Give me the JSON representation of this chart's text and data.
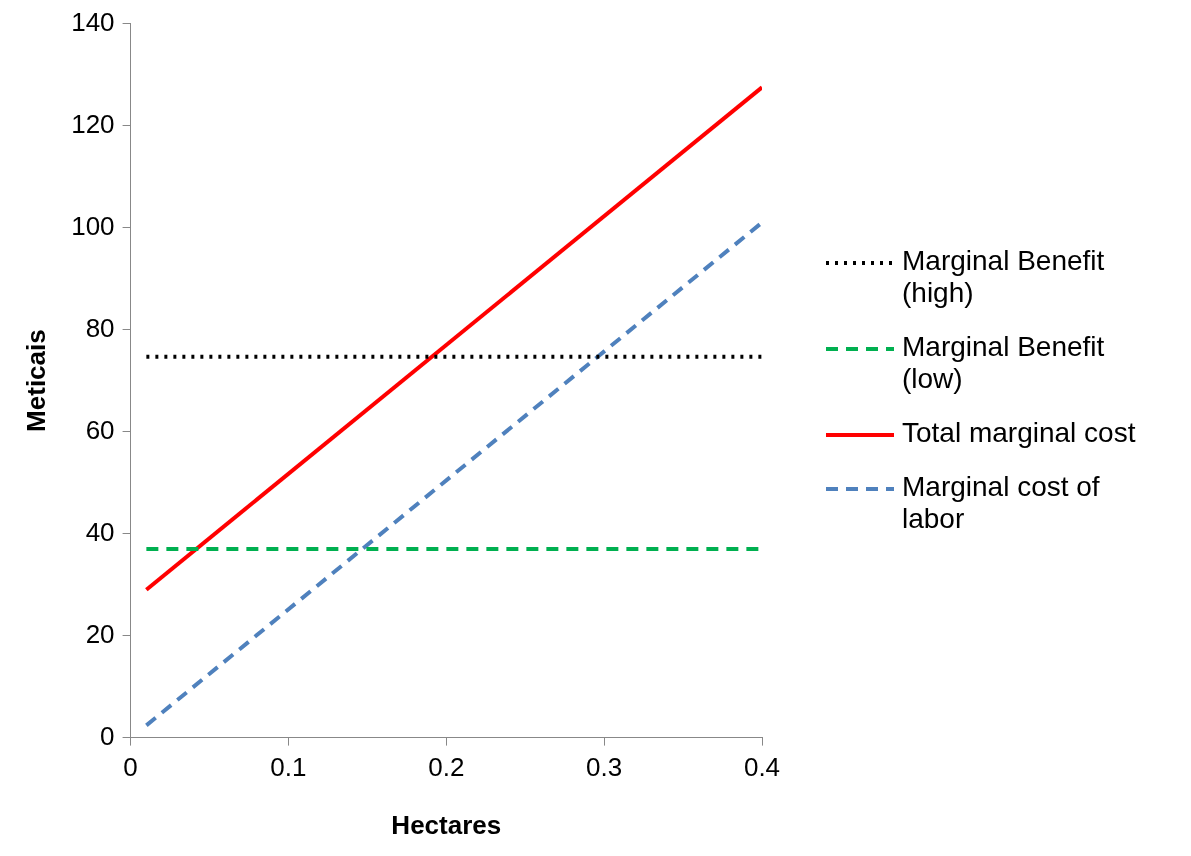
{
  "chart_data": {
    "type": "line",
    "xlabel": "Hectares",
    "ylabel": "Meticais",
    "xlim": [
      0,
      0.4
    ],
    "xticks": [
      0,
      0.1,
      0.2,
      0.3,
      0.4
    ],
    "ylim": [
      0,
      140
    ],
    "yticks": [
      0,
      20,
      40,
      60,
      80,
      100,
      120,
      140
    ],
    "grid": false,
    "legend": "right",
    "marker": "none",
    "x": [
      0.01,
      0.4
    ],
    "series": [
      {
        "name": "Marginal Benefit (high)",
        "color": "#000000",
        "line_style": "dotted",
        "values": [
          74.7,
          74.7
        ]
      },
      {
        "name": "Marginal Benefit (low)",
        "color": "#00b050",
        "line_style": "dashed",
        "values": [
          37,
          37
        ]
      },
      {
        "name": "Total marginal cost",
        "color": "#ff0000",
        "line_style": "solid",
        "values": [
          29,
          127.5
        ]
      },
      {
        "name": "Marginal cost of labor",
        "color": "#4f81bd",
        "line_style": "dashed",
        "values": [
          2.4,
          101
        ]
      }
    ]
  }
}
